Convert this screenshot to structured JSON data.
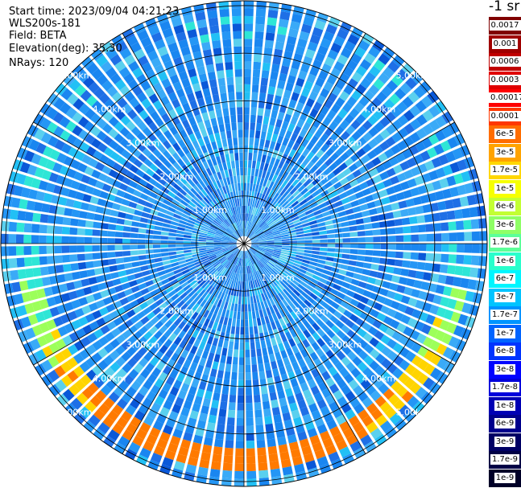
{
  "info": {
    "start_time": "Start time: 2023/09/04 04:21:23",
    "device": "WLS200s-181",
    "field": "Field: BETA",
    "elevation": "Elevation(deg): 35.30",
    "nrays": "NRays: 120"
  },
  "colorbar": {
    "unit": "-1 sr",
    "levels": [
      {
        "label": "0.0017",
        "color": "#800000"
      },
      {
        "label": "0.001",
        "color": "#a00000"
      },
      {
        "label": "0.0006",
        "color": "#c00000"
      },
      {
        "label": "0.0003",
        "color": "#e00000"
      },
      {
        "label": "0.00017",
        "color": "#ff0000"
      },
      {
        "label": "0.0001",
        "color": "#ff3800"
      },
      {
        "label": "6e-5",
        "color": "#ff6d00"
      },
      {
        "label": "3e-5",
        "color": "#ffa300"
      },
      {
        "label": "1.7e-5",
        "color": "#ffd700"
      },
      {
        "label": "1e-5",
        "color": "#f6ff00"
      },
      {
        "label": "6e-6",
        "color": "#c3ff33"
      },
      {
        "label": "3e-6",
        "color": "#8fff66"
      },
      {
        "label": "1.7e-6",
        "color": "#5cff99"
      },
      {
        "label": "1e-6",
        "color": "#29ffcc"
      },
      {
        "label": "6e-7",
        "color": "#00f5ff"
      },
      {
        "label": "3e-7",
        "color": "#00c4ff"
      },
      {
        "label": "1.7e-7",
        "color": "#0094ff"
      },
      {
        "label": "1e-7",
        "color": "#0064ff"
      },
      {
        "label": "6e-8",
        "color": "#0034ff"
      },
      {
        "label": "3e-8",
        "color": "#0004ff"
      },
      {
        "label": "1.7e-8",
        "color": "#0000dc"
      },
      {
        "label": "1e-8",
        "color": "#0000b4"
      },
      {
        "label": "6e-9",
        "color": "#00008c"
      },
      {
        "label": "3e-9",
        "color": "#000064"
      },
      {
        "label": "1.7e-9",
        "color": "#000046"
      },
      {
        "label": "1e-9",
        "color": "#000028"
      }
    ]
  },
  "chart_data": {
    "type": "heatmap",
    "projection": "polar PPI scan",
    "field": "BETA",
    "elevation_deg": 35.3,
    "n_rays": 120,
    "range_rings_km": [
      1.0,
      2.0,
      3.0,
      4.0,
      5.0
    ],
    "ring_labels": [
      "1.00km",
      "2.00km",
      "3.00km",
      "4.00km",
      "5.00km"
    ],
    "azimuth_lines_deg": [
      0,
      30,
      60,
      90,
      120,
      150,
      180,
      210,
      240,
      270,
      300,
      330
    ],
    "value_scale": "log",
    "typical_value_sr": 1.7e-07,
    "aerosol_layer": {
      "range_km": [
        4.4,
        4.7
      ],
      "peak_value_sr": 3e-05,
      "strongest_sector": "south"
    }
  }
}
